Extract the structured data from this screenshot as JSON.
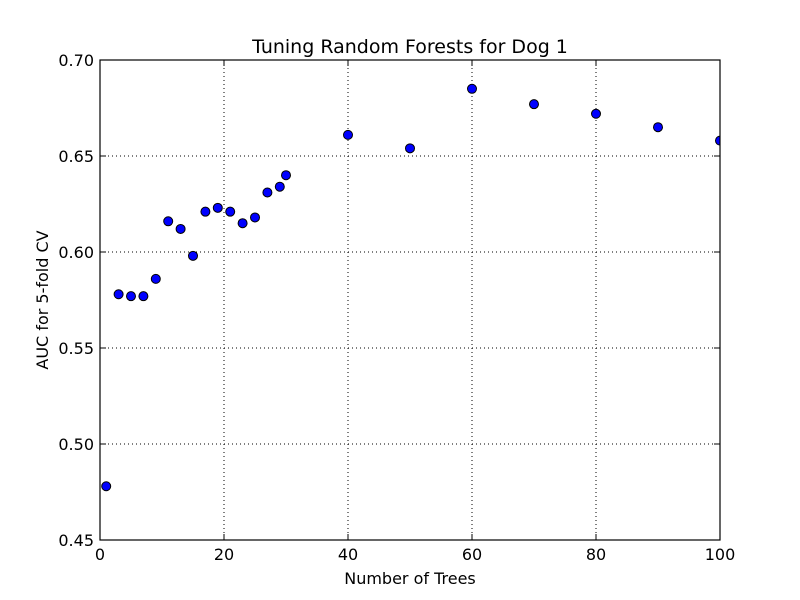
{
  "chart_data": {
    "type": "scatter",
    "title": "Tuning Random Forests for Dog 1",
    "xlabel": "Number of Trees",
    "ylabel": "AUC for 5-fold CV",
    "xlim": [
      0,
      100
    ],
    "ylim": [
      0.45,
      0.7
    ],
    "xticks": [
      0,
      20,
      40,
      60,
      80,
      100
    ],
    "xtick_labels": [
      "0",
      "20",
      "40",
      "60",
      "80",
      "100"
    ],
    "yticks": [
      0.45,
      0.5,
      0.55,
      0.6,
      0.65,
      0.7
    ],
    "ytick_labels": [
      "0.45",
      "0.50",
      "0.55",
      "0.60",
      "0.65",
      "0.70"
    ],
    "grid": true,
    "marker_color": "#0000ff",
    "marker_edge_color": "#000000",
    "points": [
      {
        "x": 1,
        "y": 0.478
      },
      {
        "x": 3,
        "y": 0.578
      },
      {
        "x": 5,
        "y": 0.577
      },
      {
        "x": 7,
        "y": 0.577
      },
      {
        "x": 9,
        "y": 0.586
      },
      {
        "x": 11,
        "y": 0.616
      },
      {
        "x": 13,
        "y": 0.612
      },
      {
        "x": 15,
        "y": 0.598
      },
      {
        "x": 17,
        "y": 0.621
      },
      {
        "x": 19,
        "y": 0.623
      },
      {
        "x": 21,
        "y": 0.621
      },
      {
        "x": 23,
        "y": 0.615
      },
      {
        "x": 25,
        "y": 0.618
      },
      {
        "x": 27,
        "y": 0.631
      },
      {
        "x": 29,
        "y": 0.634
      },
      {
        "x": 30,
        "y": 0.64
      },
      {
        "x": 40,
        "y": 0.661
      },
      {
        "x": 50,
        "y": 0.654
      },
      {
        "x": 60,
        "y": 0.685
      },
      {
        "x": 70,
        "y": 0.677
      },
      {
        "x": 80,
        "y": 0.672
      },
      {
        "x": 90,
        "y": 0.665
      },
      {
        "x": 100,
        "y": 0.658
      }
    ]
  }
}
